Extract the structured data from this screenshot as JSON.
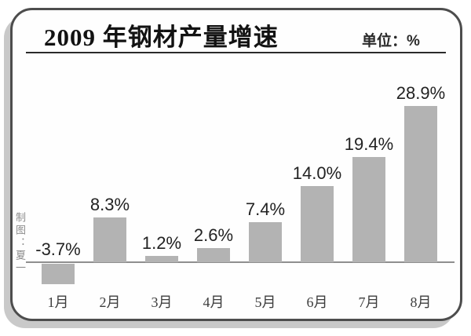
{
  "header": {
    "title": "2009 年钢材产量增速",
    "unit_label": "单位：%"
  },
  "byline": "制图：夏一",
  "colors": {
    "bar": "#b3b3b3",
    "frame_border": "#4d4d4d",
    "frame_shadow": "#c9c9c9",
    "axis_line": "#8f8f8f"
  },
  "chart_data": {
    "type": "bar",
    "title": "2009 年钢材产量增速",
    "unit": "%",
    "categories": [
      "1月",
      "2月",
      "3月",
      "4月",
      "5月",
      "6月",
      "7月",
      "8月"
    ],
    "values": [
      -3.7,
      8.3,
      1.2,
      2.6,
      7.4,
      14.0,
      19.4,
      28.9
    ],
    "value_labels": [
      "-3.7%",
      "8.3%",
      "1.2%",
      "2.6%",
      "7.4%",
      "14.0%",
      "19.4%",
      "28.9%"
    ],
    "xlabel": "",
    "ylabel": "",
    "ylim": [
      -5,
      32
    ],
    "grid": false,
    "legend": false,
    "bar_color": "#b3b3b3"
  }
}
